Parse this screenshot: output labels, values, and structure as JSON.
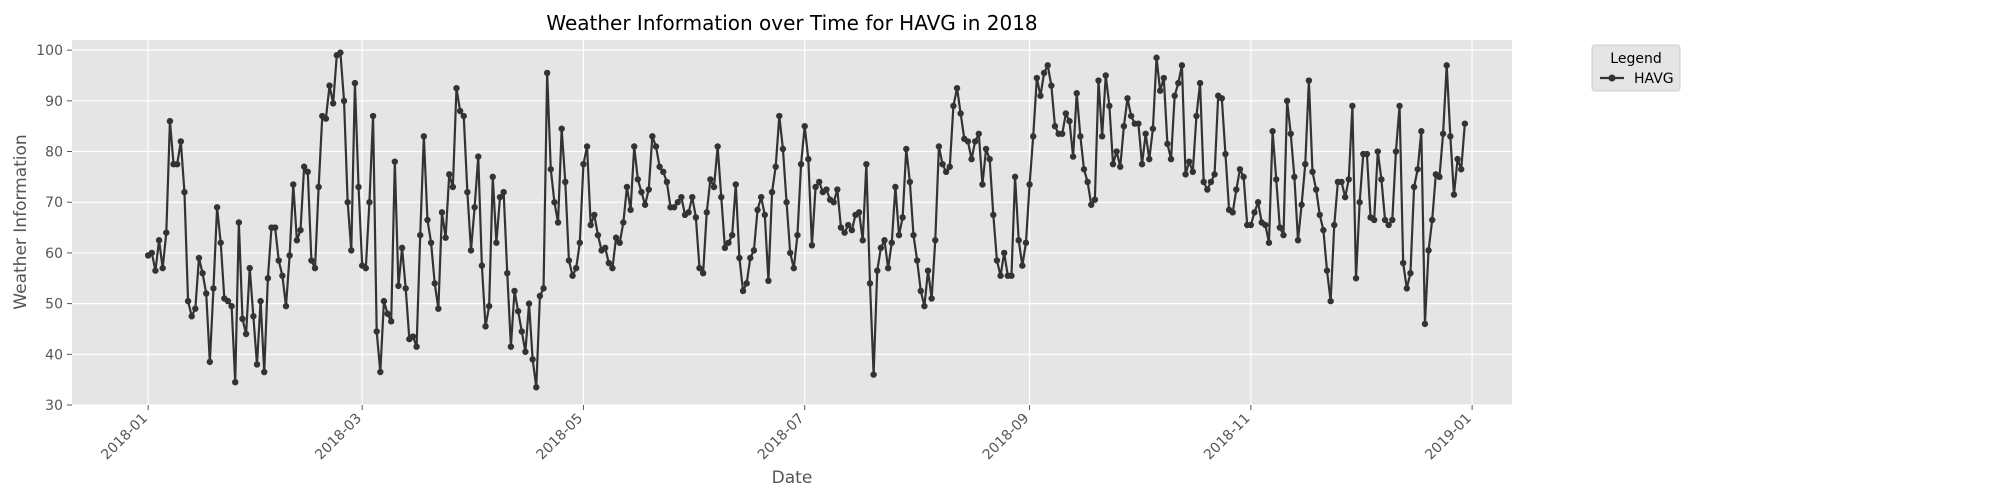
{
  "colors": {
    "plot_background": "#E5E5E5",
    "grid": "#FFFFFF",
    "series": "#333333",
    "legend_background": "#E5E5E5",
    "legend_border": "#CCCCCC"
  },
  "chart_data": {
    "type": "line",
    "title": "Weather Information over Time for HAVG in 2018",
    "xlabel": "Date",
    "ylabel": "Weather Information",
    "xlim": [
      "2017-12-11",
      "2019-01-12"
    ],
    "ylim": [
      30,
      102
    ],
    "x_ticks": [
      "2018-01-01",
      "2018-03-01",
      "2018-05-01",
      "2018-07-01",
      "2018-09-01",
      "2018-11-01",
      "2019-01-01"
    ],
    "x_tick_labels": [
      "2018-01",
      "2018-03",
      "2018-05",
      "2018-07",
      "2018-09",
      "2018-11",
      "2019-01"
    ],
    "y_ticks": [
      30,
      40,
      50,
      60,
      70,
      80,
      90,
      100
    ],
    "y_tick_labels": [
      "30",
      "40",
      "50",
      "60",
      "70",
      "80",
      "90",
      "100"
    ],
    "grid": true,
    "legend": {
      "title": "Legend",
      "placement": "outside-top-right"
    },
    "x_start": "2018-01-01",
    "x_step": "1 day",
    "series": [
      {
        "name": "HAVG",
        "marker": "circle",
        "values": [
          59.5,
          60,
          56.5,
          62.5,
          57,
          64,
          86,
          77.5,
          77.5,
          82,
          72,
          50.5,
          47.5,
          49,
          59,
          56,
          52,
          38.5,
          53,
          69,
          62,
          51,
          50.5,
          49.5,
          34.5,
          66,
          47,
          44,
          57,
          47.5,
          38,
          50.5,
          36.5,
          55,
          65,
          65,
          58.5,
          55.5,
          49.5,
          59.5,
          73.5,
          62.5,
          64.5,
          77,
          76,
          58.5,
          57,
          73,
          87,
          86.5,
          93,
          89.5,
          99,
          99.5,
          90,
          70,
          60.5,
          93.5,
          73,
          57.5,
          57,
          70,
          87,
          44.5,
          36.5,
          50.5,
          48,
          46.5,
          78,
          53.5,
          61,
          53,
          43,
          43.5,
          41.5,
          63.5,
          83,
          66.5,
          62,
          54,
          49,
          68,
          63,
          75.5,
          73,
          92.5,
          88,
          87,
          72,
          60.5,
          69,
          79,
          57.5,
          45.5,
          49.5,
          75,
          62,
          71,
          72,
          56,
          41.5,
          52.5,
          48.5,
          44.5,
          40.5,
          50,
          39,
          33.5,
          51.5,
          53,
          95.5,
          76.5,
          70,
          66,
          84.5,
          74,
          58.5,
          55.5,
          57,
          62,
          77.5,
          81,
          65.5,
          67.5,
          63.5,
          60.5,
          61,
          58,
          57,
          63,
          62,
          66,
          73,
          68.5,
          81,
          74.5,
          72,
          69.5,
          72.5,
          83,
          81,
          77,
          76,
          74,
          69,
          69,
          70,
          71,
          67.5,
          68,
          71,
          67,
          57,
          56,
          68,
          74.5,
          73,
          81,
          71,
          61,
          62,
          63.5,
          73.5,
          59,
          52.5,
          54,
          59,
          60.5,
          68.5,
          71,
          67.5,
          54.5,
          72,
          77,
          87,
          80.5,
          70,
          60,
          57,
          63.5,
          77.5,
          85,
          78.5,
          61.5,
          73,
          74,
          72,
          72.5,
          70.5,
          70,
          72.5,
          65,
          64,
          65.5,
          64.5,
          67.5,
          68,
          62.5,
          77.5,
          54,
          36,
          56.5,
          61,
          62.5,
          57,
          62,
          73,
          63.5,
          67,
          80.5,
          74,
          63.5,
          58.5,
          52.5,
          49.5,
          56.5,
          51,
          62.5,
          81,
          77.5,
          76,
          77,
          89,
          92.5,
          87.5,
          82.5,
          82,
          78.5,
          82,
          83.5,
          73.5,
          80.5,
          78.5,
          67.5,
          58.5,
          55.5,
          60,
          55.5,
          55.5,
          75,
          62.5,
          57.5,
          62,
          73.5,
          83,
          94.5,
          91,
          95.5,
          97,
          93,
          85,
          83.5,
          83.5,
          87.5,
          86,
          79,
          91.5,
          83,
          76.5,
          74,
          69.5,
          70.5,
          94,
          83,
          95,
          89,
          77.5,
          80,
          77,
          85,
          90.5,
          87,
          85.5,
          85.5,
          77.5,
          83.5,
          78.5,
          84.5,
          98.5,
          92,
          94.5,
          81.5,
          78.5,
          91,
          93.5,
          97,
          75.5,
          78,
          76,
          87,
          93.5,
          74,
          72.5,
          74,
          75.5,
          91,
          90.5,
          79.5,
          68.5,
          68,
          72.5,
          76.5,
          75,
          65.5,
          65.5,
          68,
          70,
          66,
          65.5,
          62,
          84,
          74.5,
          65,
          63.5,
          90,
          83.5,
          75,
          62.5,
          69.5,
          77.5,
          94,
          76,
          72.5,
          67.5,
          64.5,
          56.5,
          50.5,
          65.5,
          74,
          74,
          71,
          74.5,
          89,
          55,
          70,
          79.5,
          79.5,
          67,
          66.5,
          80,
          74.5,
          66.5,
          65.5,
          66.5,
          80,
          89,
          58,
          53,
          56,
          73,
          76.5,
          84,
          46,
          60.5,
          66.5,
          75.5,
          75,
          83.5,
          97,
          83,
          71.5,
          78.5,
          76.5,
          85.5
        ]
      }
    ]
  }
}
